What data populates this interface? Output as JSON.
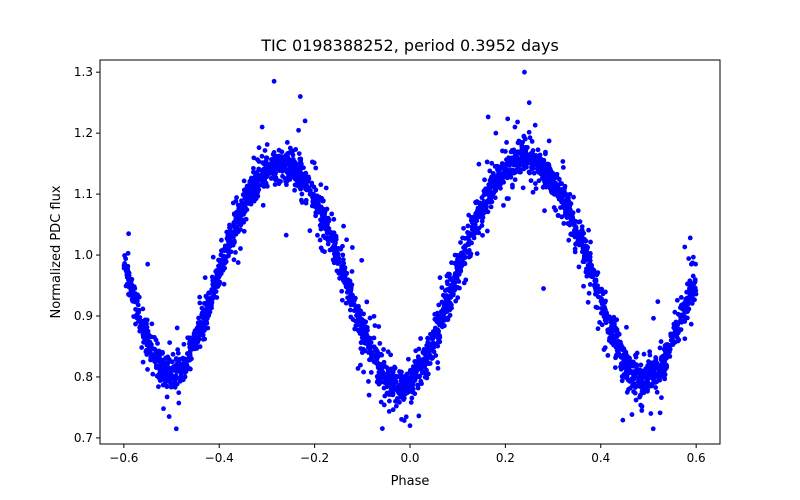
{
  "chart_data": {
    "type": "scatter",
    "title": "TIC 0198388252, period 0.3952 days",
    "xlabel": "Phase",
    "ylabel": "Normalized PDC flux",
    "xlim": [
      -0.65,
      0.65
    ],
    "ylim": [
      0.69,
      1.32
    ],
    "xticks": [
      -0.6,
      -0.4,
      -0.2,
      0.0,
      0.2,
      0.4,
      0.6
    ],
    "xtick_labels": [
      "−0.6",
      "−0.4",
      "−0.2",
      "0.0",
      "0.2",
      "0.4",
      "0.6"
    ],
    "yticks": [
      0.7,
      0.8,
      0.9,
      1.0,
      1.1,
      1.2,
      1.3
    ],
    "ytick_labels": [
      "0.7",
      "0.8",
      "0.9",
      "1.0",
      "1.1",
      "1.2",
      "1.3"
    ],
    "grid": false,
    "marker_color": "#0000ff",
    "series": [
      {
        "x": [
          -0.6,
          -0.58,
          -0.56,
          -0.54,
          -0.52,
          -0.5,
          -0.48,
          -0.46,
          -0.44,
          -0.42,
          -0.4,
          -0.38,
          -0.36,
          -0.34,
          -0.32,
          -0.3,
          -0.28,
          -0.26,
          -0.24,
          -0.22,
          -0.2,
          -0.18,
          -0.16,
          -0.14,
          -0.12,
          -0.1,
          -0.08,
          -0.06,
          -0.04,
          -0.02,
          0.0,
          0.02,
          0.04,
          0.06,
          0.08,
          0.1,
          0.12,
          0.14,
          0.16,
          0.18,
          0.2,
          0.22,
          0.24,
          0.26,
          0.28,
          0.3,
          0.32,
          0.34,
          0.36,
          0.38,
          0.4,
          0.42,
          0.44,
          0.46,
          0.48,
          0.5,
          0.52,
          0.54,
          0.56,
          0.58,
          0.6
        ],
        "y": [
          0.98,
          0.935,
          0.88,
          0.84,
          0.81,
          0.8,
          0.81,
          0.84,
          0.88,
          0.925,
          0.975,
          1.02,
          1.06,
          1.095,
          1.12,
          1.14,
          1.145,
          1.145,
          1.14,
          1.12,
          1.095,
          1.06,
          1.02,
          0.975,
          0.925,
          0.88,
          0.84,
          0.81,
          0.79,
          0.785,
          0.79,
          0.81,
          0.84,
          0.88,
          0.925,
          0.975,
          1.02,
          1.06,
          1.095,
          1.12,
          1.14,
          1.155,
          1.16,
          1.155,
          1.14,
          1.12,
          1.095,
          1.06,
          1.02,
          0.975,
          0.925,
          0.88,
          0.84,
          0.81,
          0.8,
          0.8,
          0.81,
          0.84,
          0.88,
          0.925,
          0.96
        ]
      }
    ],
    "outliers": {
      "x": [
        -0.285,
        -0.23,
        0.24,
        0.25,
        0.22,
        -0.31,
        0.18,
        -0.21,
        0.28,
        -0.49,
        0.51,
        -0.505,
        0.505,
        -0.22,
        0.2,
        0.0,
        -0.1,
        0.1,
        -0.59,
        0.59,
        -0.55
      ],
      "y": [
        1.285,
        1.26,
        1.3,
        1.25,
        1.21,
        1.21,
        1.2,
        1.04,
        0.945,
        0.715,
        0.715,
        0.735,
        0.74,
        1.22,
        1.17,
        0.72,
        0.84,
        0.93,
        1.035,
        0.985,
        0.985
      ]
    }
  }
}
